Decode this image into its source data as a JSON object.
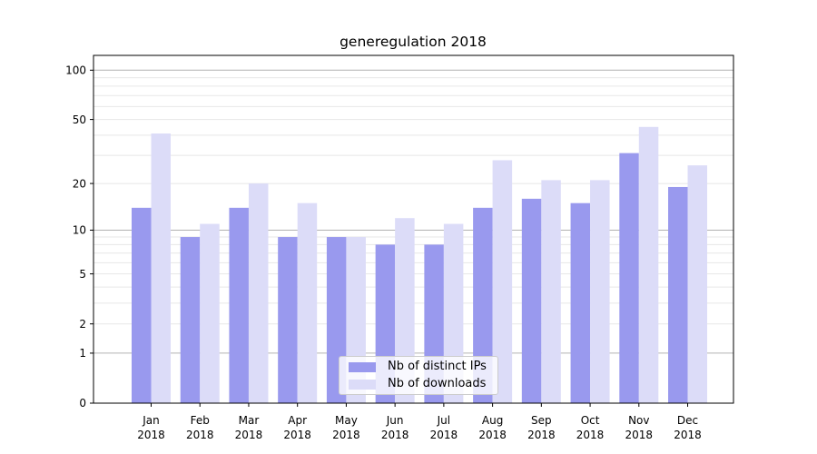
{
  "chart_data": {
    "type": "bar",
    "title": "generegulation 2018",
    "year_label": "2018",
    "categories": [
      "Jan",
      "Feb",
      "Mar",
      "Apr",
      "May",
      "Jun",
      "Jul",
      "Aug",
      "Sep",
      "Oct",
      "Nov",
      "Dec"
    ],
    "series": [
      {
        "name": "Nb of distinct IPs",
        "color": "#9999ee",
        "values": [
          14,
          9,
          14,
          9,
          9,
          8,
          8,
          14,
          16,
          15,
          31,
          19
        ]
      },
      {
        "name": "Nb of downloads",
        "color": "#dcdcf8",
        "values": [
          41,
          11,
          20,
          15,
          9,
          12,
          11,
          28,
          21,
          21,
          45,
          26
        ]
      }
    ],
    "yscale": "log1p",
    "ylim": [
      0,
      123
    ],
    "yticks": [
      0,
      1,
      2,
      5,
      10,
      20,
      50,
      100
    ],
    "grid": {
      "major": [
        1,
        10,
        100
      ],
      "minor": [
        2,
        3,
        4,
        5,
        6,
        7,
        8,
        9,
        20,
        30,
        40,
        50,
        60,
        70,
        80,
        90
      ]
    },
    "legend_position": "lower center",
    "colors": {
      "grid_major": "#b2b2b2",
      "grid_minor": "#e7e7e7",
      "spine": "#000000",
      "text": "#000000"
    }
  }
}
